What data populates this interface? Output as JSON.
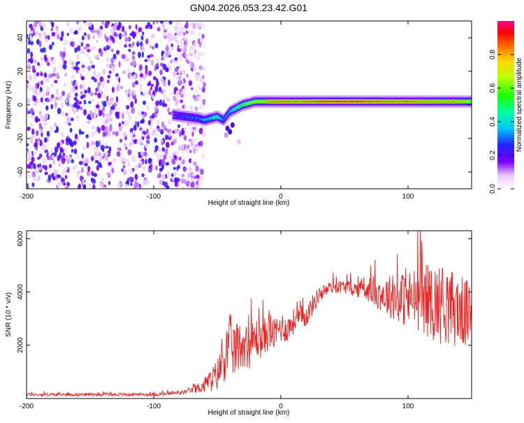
{
  "title": "GN04.2026.053.23.42.G01",
  "chart_data": [
    {
      "type": "heatmap",
      "xlabel": "Height of straight line (km)",
      "ylabel": "Frequency (Hz)",
      "xlim": [
        -200,
        150
      ],
      "ylim": [
        -50,
        50
      ],
      "xticks": [
        -200,
        -100,
        0,
        100
      ],
      "yticks": [
        -40,
        -20,
        0,
        20,
        40
      ],
      "colorbar": {
        "label": "Normalized spectral amplitude",
        "range": [
          0,
          1
        ],
        "ticks": [
          0.0,
          0.2,
          0.4,
          0.6,
          0.8
        ]
      },
      "noise_region_x": [
        -200,
        -65
      ],
      "signal_trace": {
        "x": [
          -85,
          -75,
          -65,
          -60,
          -55,
          -50,
          -45,
          -40,
          -35,
          -30,
          -25,
          -20,
          -10,
          0,
          20,
          40,
          60,
          80,
          100,
          120,
          140,
          150
        ],
        "freq": [
          -6,
          -7,
          -8,
          -9,
          -8,
          -7,
          -9,
          -4,
          -2,
          0,
          1,
          2,
          2,
          2,
          2,
          2,
          2,
          2,
          2,
          2,
          2,
          2
        ],
        "amplitude": [
          0.2,
          0.3,
          0.3,
          0.4,
          0.4,
          0.5,
          0.3,
          0.4,
          0.5,
          0.55,
          0.6,
          0.7,
          0.8,
          0.85,
          0.85,
          0.9,
          0.9,
          0.85,
          0.85,
          0.8,
          0.8,
          0.7
        ]
      }
    },
    {
      "type": "line",
      "xlabel": "Height of straight line (km)",
      "ylabel": "SNR (10 * v/v)",
      "xlim": [
        -200,
        150
      ],
      "ylim": [
        0,
        6300
      ],
      "xticks": [
        -200,
        -100,
        0,
        100
      ],
      "yticks": [
        2000,
        4000,
        6000
      ],
      "color": "#ee2222",
      "series": {
        "name": "SNR",
        "x": [
          -200,
          -150,
          -100,
          -80,
          -70,
          -60,
          -50,
          -45,
          -40,
          -35,
          -30,
          -25,
          -20,
          -15,
          -10,
          -5,
          0,
          5,
          10,
          15,
          20,
          25,
          30,
          40,
          50,
          60,
          70,
          80,
          90,
          100,
          110,
          120,
          130,
          140,
          150
        ],
        "y": [
          150,
          150,
          150,
          200,
          300,
          500,
          900,
          1500,
          2000,
          1800,
          2100,
          1900,
          2300,
          2200,
          2500,
          2400,
          2700,
          2600,
          2900,
          3000,
          3100,
          3500,
          3900,
          4200,
          4200,
          4100,
          4100,
          3900,
          3800,
          3700,
          3800,
          3600,
          3500,
          3300,
          3100
        ],
        "spread": [
          60,
          60,
          60,
          80,
          100,
          300,
          600,
          900,
          1200,
          1000,
          900,
          800,
          800,
          700,
          700,
          600,
          600,
          500,
          500,
          500,
          400,
          400,
          300,
          250,
          250,
          300,
          500,
          700,
          900,
          1100,
          1300,
          1500,
          1500,
          1400,
          1200
        ]
      }
    }
  ]
}
